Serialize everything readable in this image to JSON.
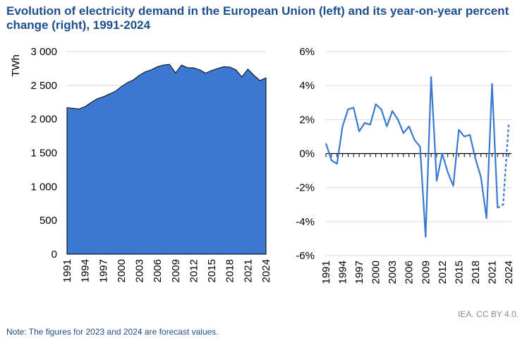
{
  "title": "Evolution of electricity demand in the European Union (left) and its year-on-year percent change (right), 1991-2024",
  "credit": "IEA. CC BY 4.0.",
  "note": "Note: The figures for 2023 and 2024 are forecast values.",
  "colors": {
    "area": "#3b78d2",
    "line": "#3b78d2",
    "title": "#1f4e8c",
    "grid": "#d9d9d9"
  },
  "chart_data": [
    {
      "type": "area",
      "ylabel": "TWh",
      "ylim": [
        0,
        3000
      ],
      "yticks": [
        0,
        500,
        1000,
        1500,
        2000,
        2500,
        3000
      ],
      "ytick_labels": [
        "0",
        "500",
        "1 000",
        "1 500",
        "2 000",
        "2 500",
        "3 000"
      ],
      "xticks": [
        "1991",
        "1994",
        "1997",
        "2000",
        "2003",
        "2006",
        "2009",
        "2012",
        "2015",
        "2018",
        "2021",
        "2024"
      ],
      "grid": true,
      "x": [
        1991,
        1992,
        1993,
        1994,
        1995,
        1996,
        1997,
        1998,
        1999,
        2000,
        2001,
        2002,
        2003,
        2004,
        2005,
        2006,
        2007,
        2008,
        2009,
        2010,
        2011,
        2012,
        2013,
        2014,
        2015,
        2016,
        2017,
        2018,
        2019,
        2020,
        2021,
        2022,
        2023,
        2024
      ],
      "values": [
        2170,
        2160,
        2150,
        2185,
        2245,
        2300,
        2330,
        2370,
        2410,
        2480,
        2540,
        2580,
        2650,
        2700,
        2730,
        2775,
        2800,
        2810,
        2685,
        2800,
        2760,
        2760,
        2730,
        2680,
        2720,
        2750,
        2775,
        2770,
        2730,
        2625,
        2740,
        2650,
        2570,
        2610
      ]
    },
    {
      "type": "line",
      "ylim": [
        -6,
        6
      ],
      "yticks": [
        -6,
        -4,
        -2,
        0,
        2,
        4,
        6
      ],
      "ytick_labels": [
        "-6%",
        "-4%",
        "-2%",
        "0%",
        "2%",
        "4%",
        "6%"
      ],
      "xticks": [
        "1991",
        "1994",
        "1997",
        "2000",
        "2003",
        "2006",
        "2009",
        "2012",
        "2015",
        "2018",
        "2021",
        "2024"
      ],
      "grid": true,
      "x": [
        1991,
        1992,
        1993,
        1994,
        1995,
        1996,
        1997,
        1998,
        1999,
        2000,
        2001,
        2002,
        2003,
        2004,
        2005,
        2006,
        2007,
        2008,
        2009,
        2010,
        2011,
        2012,
        2013,
        2014,
        2015,
        2016,
        2017,
        2018,
        2019,
        2020,
        2021,
        2022,
        2023,
        2024
      ],
      "values": [
        0.6,
        -0.4,
        -0.6,
        1.6,
        2.6,
        2.7,
        1.3,
        1.8,
        1.7,
        2.9,
        2.6,
        1.6,
        2.5,
        2.0,
        1.2,
        1.6,
        0.8,
        0.4,
        -4.9,
        4.5,
        -1.6,
        0.0,
        -1.1,
        -1.9,
        1.4,
        1.0,
        1.1,
        -0.3,
        -1.4,
        -3.8,
        4.1,
        -3.2,
        -3.0,
        1.7
      ],
      "forecast_from": 2023
    }
  ]
}
